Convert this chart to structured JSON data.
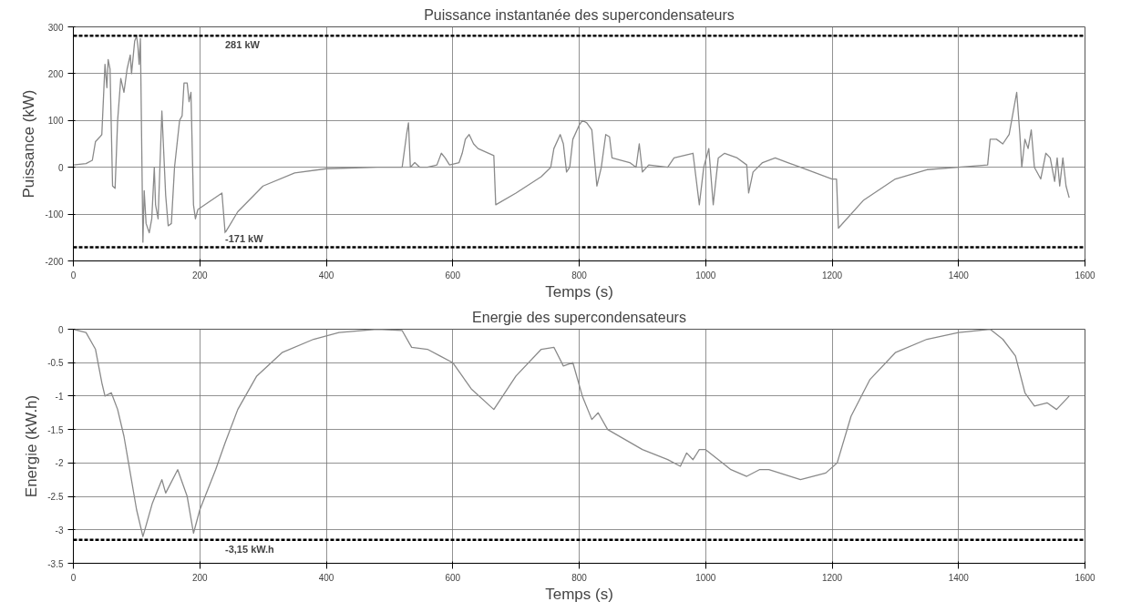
{
  "chart_data": [
    {
      "type": "line",
      "title": "Puissance instantanée des supercondensateurs",
      "xlabel": "Temps (s)",
      "ylabel": "Puissance (kW)",
      "xlim": [
        0,
        1600
      ],
      "ylim": [
        -200,
        300
      ],
      "xticks": [
        0,
        200,
        400,
        600,
        800,
        1000,
        1200,
        1400,
        1600
      ],
      "yticks": [
        -200,
        -100,
        0,
        100,
        200,
        300
      ],
      "grid": true,
      "series": [
        {
          "color": "#8a8a8a",
          "x": [
            0,
            20,
            30,
            35,
            42,
            45,
            48,
            50,
            53,
            55,
            58,
            62,
            66,
            70,
            75,
            80,
            85,
            90,
            92,
            97,
            100,
            102,
            104,
            106,
            110,
            112,
            115,
            120,
            124,
            128,
            130,
            134,
            140,
            146,
            150,
            155,
            160,
            168,
            172,
            175,
            180,
            183,
            186,
            190,
            193,
            197,
            235,
            240,
            260,
            300,
            350,
            400,
            480,
            520,
            527,
            530,
            533,
            540,
            548,
            560,
            575,
            582,
            588,
            595,
            610,
            615,
            620,
            626,
            633,
            640,
            665,
            668,
            700,
            740,
            755,
            760,
            770,
            775,
            780,
            785,
            790,
            800,
            805,
            812,
            820,
            828,
            835,
            842,
            848,
            852,
            880,
            890,
            895,
            900,
            910,
            940,
            950,
            980,
            990,
            997,
            1005,
            1012,
            1020,
            1030,
            1050,
            1065,
            1068,
            1075,
            1090,
            1110,
            1130,
            1150,
            1200,
            1207,
            1210,
            1250,
            1300,
            1350,
            1400,
            1446,
            1450,
            1460,
            1470,
            1480,
            1492,
            1497,
            1500,
            1505,
            1510,
            1515,
            1520,
            1530,
            1538,
            1545,
            1552,
            1556,
            1560,
            1565,
            1570,
            1575
          ],
          "values": [
            5,
            8,
            15,
            55,
            65,
            70,
            160,
            220,
            170,
            230,
            210,
            -40,
            -45,
            100,
            190,
            160,
            210,
            240,
            200,
            270,
            280,
            260,
            220,
            275,
            -160,
            -50,
            -120,
            -140,
            -110,
            0,
            -80,
            -110,
            120,
            -60,
            -125,
            -120,
            0,
            100,
            110,
            180,
            180,
            140,
            160,
            -80,
            -110,
            -90,
            -55,
            -140,
            -95,
            -40,
            -12,
            -3,
            0,
            0,
            70,
            95,
            0,
            10,
            0,
            0,
            5,
            30,
            20,
            5,
            10,
            30,
            60,
            70,
            50,
            40,
            25,
            -80,
            -55,
            -20,
            0,
            40,
            70,
            50,
            -10,
            0,
            60,
            90,
            100,
            95,
            80,
            -40,
            0,
            70,
            65,
            20,
            10,
            0,
            50,
            -10,
            5,
            0,
            20,
            30,
            -80,
            0,
            40,
            -80,
            20,
            30,
            20,
            5,
            -55,
            -10,
            10,
            20,
            10,
            0,
            -25,
            -25,
            -130,
            -70,
            -25,
            -5,
            0,
            5,
            60,
            60,
            50,
            70,
            160,
            70,
            0,
            60,
            40,
            80,
            0,
            -25,
            30,
            20,
            -30,
            20,
            -40,
            20,
            -40,
            -65
          ]
        }
      ],
      "ref_lines": [
        {
          "axis": "y",
          "value": 281,
          "label": "281 kW",
          "color": "#000000",
          "line_style": "dashed"
        },
        {
          "axis": "y",
          "value": -171,
          "label": "-171 kW",
          "color": "#000000",
          "line_style": "dashed"
        }
      ]
    },
    {
      "type": "line",
      "title": "Energie des supercondensateurs",
      "xlabel": "Temps (s)",
      "ylabel": "Energie (kW.h)",
      "xlim": [
        0,
        1600
      ],
      "ylim": [
        -3.5,
        0
      ],
      "xticks": [
        0,
        200,
        400,
        600,
        800,
        1000,
        1200,
        1400,
        1600
      ],
      "yticks": [
        -3.5,
        -3,
        -2.5,
        -2,
        -1.5,
        -1,
        -0.5,
        0
      ],
      "grid": true,
      "series": [
        {
          "color": "#8a8a8a",
          "x": [
            0,
            20,
            35,
            45,
            50,
            60,
            70,
            80,
            100,
            110,
            125,
            140,
            146,
            165,
            180,
            190,
            200,
            225,
            240,
            260,
            290,
            330,
            380,
            420,
            480,
            520,
            535,
            560,
            580,
            600,
            630,
            665,
            700,
            740,
            760,
            775,
            790,
            805,
            820,
            830,
            845,
            900,
            940,
            960,
            970,
            980,
            990,
            1000,
            1040,
            1065,
            1085,
            1100,
            1150,
            1190,
            1208,
            1230,
            1260,
            1300,
            1350,
            1400,
            1450,
            1470,
            1490,
            1505,
            1520,
            1540,
            1555,
            1575
          ],
          "values": [
            0,
            -0.05,
            -0.3,
            -0.8,
            -1.0,
            -0.95,
            -1.2,
            -1.6,
            -2.7,
            -3.1,
            -2.6,
            -2.25,
            -2.45,
            -2.1,
            -2.5,
            -3.05,
            -2.7,
            -2.1,
            -1.7,
            -1.2,
            -0.7,
            -0.35,
            -0.15,
            -0.05,
            0,
            -0.02,
            -0.27,
            -0.3,
            -0.4,
            -0.5,
            -0.9,
            -1.2,
            -0.7,
            -0.3,
            -0.27,
            -0.55,
            -0.5,
            -1.0,
            -1.35,
            -1.25,
            -1.5,
            -1.8,
            -1.95,
            -2.05,
            -1.85,
            -1.95,
            -1.8,
            -1.8,
            -2.1,
            -2.2,
            -2.1,
            -2.1,
            -2.25,
            -2.15,
            -2.0,
            -1.3,
            -0.75,
            -0.35,
            -0.15,
            -0.05,
            0,
            -0.15,
            -0.4,
            -0.95,
            -1.15,
            -1.1,
            -1.2,
            -1.0
          ]
        }
      ],
      "ref_lines": [
        {
          "axis": "y",
          "value": -3.15,
          "label": "-3,15 kW.h",
          "color": "#000000",
          "line_style": "dashed"
        }
      ]
    }
  ]
}
